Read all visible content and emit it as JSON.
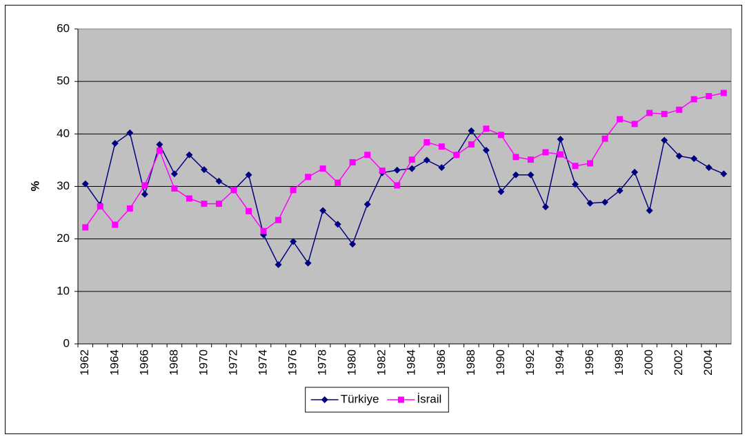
{
  "chart_data": {
    "type": "line",
    "y_label": "%",
    "x": [
      1962,
      1963,
      1964,
      1965,
      1966,
      1967,
      1968,
      1969,
      1970,
      1971,
      1972,
      1973,
      1974,
      1975,
      1976,
      1977,
      1978,
      1979,
      1980,
      1981,
      1982,
      1983,
      1984,
      1985,
      1986,
      1987,
      1988,
      1989,
      1990,
      1991,
      1992,
      1993,
      1994,
      1995,
      1996,
      1997,
      1998,
      1999,
      2000,
      2001,
      2002,
      2003,
      2004,
      2005
    ],
    "series": [
      {
        "name": "Türkiye",
        "color": "#000080",
        "marker": "diamond",
        "values": [
          30.5,
          26.5,
          38.2,
          40.2,
          28.5,
          38,
          32.4,
          36,
          33.2,
          31,
          29.3,
          32.2,
          20.8,
          15.1,
          19.5,
          15.4,
          25.4,
          22.8,
          19,
          26.6,
          32.6,
          33.1,
          33.4,
          35,
          33.6,
          36,
          40.6,
          36.9,
          29,
          32.2,
          32.2,
          26.1,
          39,
          30.4,
          26.8,
          27,
          29.2,
          32.7,
          25.4,
          38.8,
          35.8,
          35.3,
          33.6,
          32.4
        ]
      },
      {
        "name": "İsrail",
        "color": "#ff00ff",
        "marker": "square",
        "values": [
          22.2,
          26.2,
          22.7,
          25.8,
          30.2,
          36.8,
          29.6,
          27.7,
          26.7,
          26.7,
          29.3,
          25.3,
          21.5,
          23.6,
          29.3,
          31.8,
          33.4,
          30.7,
          34.6,
          36,
          33,
          30.2,
          35.1,
          38.4,
          37.6,
          36,
          38,
          41,
          39.8,
          35.6,
          35.1,
          36.5,
          36.1,
          33.9,
          34.4,
          39.1,
          42.8,
          41.9,
          44,
          43.8,
          44.6,
          46.6,
          47.2,
          47.8
        ]
      }
    ],
    "xlim": [
      1961.5,
      2005.5
    ],
    "xticks": [
      1962,
      1964,
      1966,
      1968,
      1970,
      1972,
      1974,
      1976,
      1978,
      1980,
      1982,
      1984,
      1986,
      1988,
      1990,
      1992,
      1994,
      1996,
      1998,
      2000,
      2002,
      2004
    ],
    "ylim": [
      0,
      60
    ],
    "yticks": [
      0,
      10,
      20,
      30,
      40,
      50,
      60
    ],
    "grid": true,
    "legend": "bottom"
  }
}
